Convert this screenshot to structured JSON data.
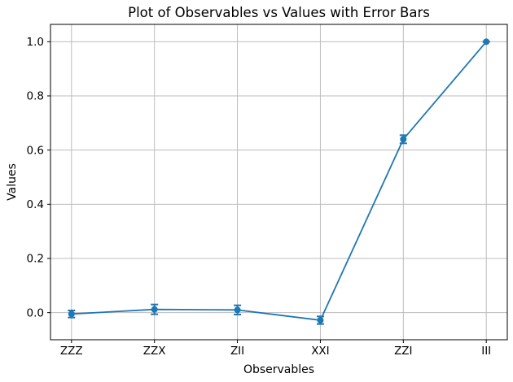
{
  "chart_data": {
    "type": "line",
    "title": "Plot of Observables vs Values with Error Bars",
    "xlabel": "Observables",
    "ylabel": "Values",
    "categories": [
      "ZZZ",
      "ZZX",
      "ZII",
      "XXI",
      "ZZI",
      "III"
    ],
    "values": [
      -0.005,
      0.012,
      0.01,
      -0.028,
      0.64,
      1.0
    ],
    "errors": [
      0.013,
      0.018,
      0.017,
      0.014,
      0.015,
      0.0
    ],
    "yticks": [
      0.0,
      0.2,
      0.4,
      0.6,
      0.8,
      1.0
    ],
    "ytick_labels": [
      "0.0",
      "0.2",
      "0.4",
      "0.6",
      "0.8",
      "1.0"
    ],
    "ylim": [
      -0.1,
      1.064
    ],
    "grid": true,
    "legend": false,
    "line_color": "#1f77b4",
    "grid_color": "#bdbdbd",
    "axis_color": "#000000",
    "marker": "circle"
  }
}
